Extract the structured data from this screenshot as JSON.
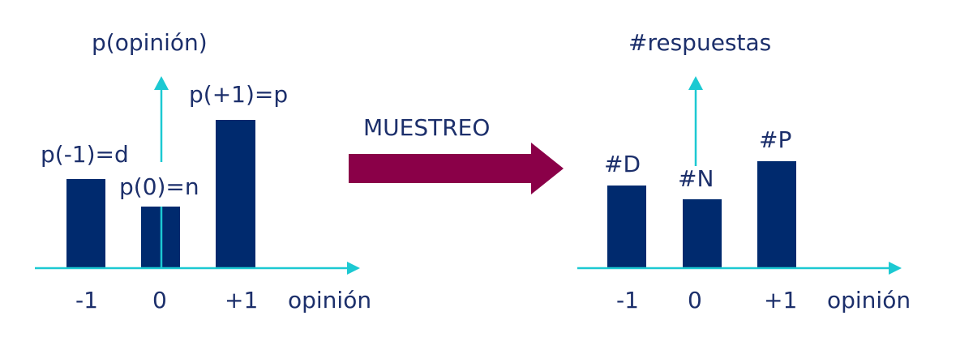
{
  "colors": {
    "bars": "#002a6e",
    "axes": "#1cc9d2",
    "arrow": "#8a0048",
    "text": "#1c2f6b"
  },
  "left_panel": {
    "y_axis_label": "p(opinión)",
    "x_axis_label": "opinión",
    "ticks": [
      "-1",
      "0",
      "+1"
    ],
    "bar_labels": [
      "p(-1)=d",
      "p(0)=n",
      "p(+1)=p"
    ]
  },
  "arrow": {
    "label": "MUESTREO"
  },
  "right_panel": {
    "y_axis_label": "#respuestas",
    "x_axis_label": "opinión",
    "ticks": [
      "-1",
      "0",
      "+1"
    ],
    "bar_labels": [
      "#D",
      "#N",
      "#P"
    ]
  }
}
